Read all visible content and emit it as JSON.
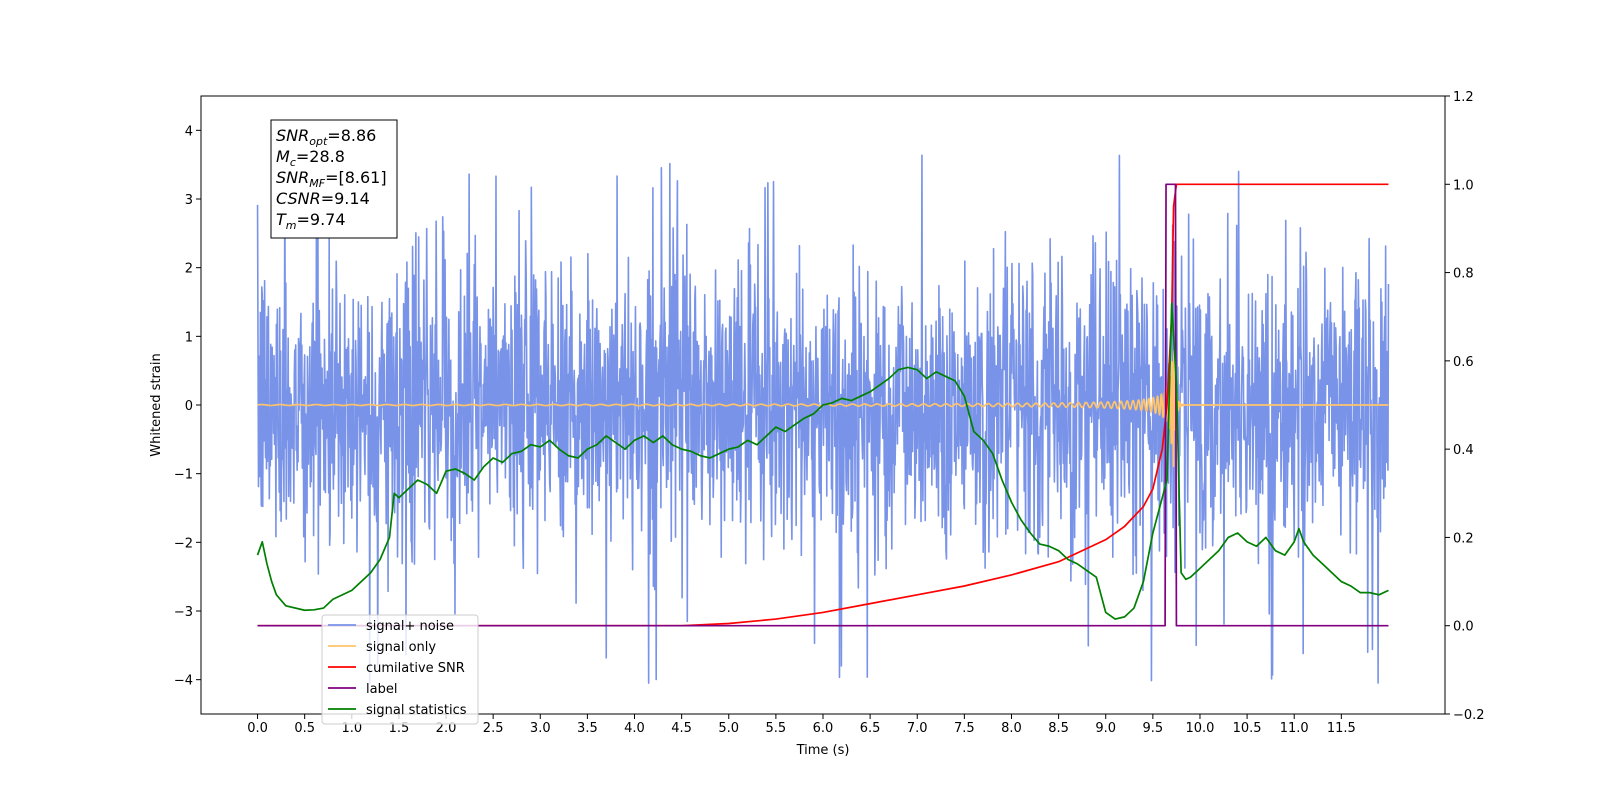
{
  "chart_data": {
    "type": "line",
    "title": "",
    "xlabel": "Time (s)",
    "ylabel": "Whitened strain",
    "xlim": [
      -0.6,
      12.6
    ],
    "ylim_left": [
      -4.5,
      4.5
    ],
    "ylim_right": [
      -0.2,
      1.2
    ],
    "x_ticks": [
      0.0,
      0.5,
      1.0,
      1.5,
      2.0,
      2.5,
      3.0,
      3.5,
      4.0,
      4.5,
      5.0,
      5.5,
      6.0,
      6.5,
      7.0,
      7.5,
      8.0,
      8.5,
      9.0,
      9.5,
      10.0,
      10.5,
      11.0,
      11.5
    ],
    "x_tick_labels": [
      "0.0",
      "0.5",
      "1.0",
      "1.5",
      "2.0",
      "2.5",
      "3.0",
      "3.5",
      "4.0",
      "4.5",
      "5.0",
      "5.5",
      "6.0",
      "6.5",
      "7.0",
      "7.5",
      "8.0",
      "8.5",
      "9.0",
      "9.5",
      "10.0",
      "10.5",
      "11.0",
      "11.5"
    ],
    "y_left_ticks": [
      4,
      3,
      2,
      1,
      0,
      -1,
      -2,
      -3,
      -4
    ],
    "y_left_tick_labels": [
      "4",
      "3",
      "2",
      "1",
      "0",
      "−1",
      "−2",
      "−3",
      "−4"
    ],
    "y_right_ticks": [
      1.2,
      1.0,
      0.8,
      0.6,
      0.4,
      0.2,
      0.0,
      -0.2
    ],
    "y_right_tick_labels": [
      "1.2",
      "1.0",
      "0.8",
      "0.6",
      "0.4",
      "0.2",
      "0.0",
      "−0.2"
    ],
    "grid": false,
    "legend_placement": "lower-left",
    "legend": [
      {
        "label": "signal+ noise",
        "color": "#7893e8"
      },
      {
        "label": "signal only",
        "color": "#ffc46b"
      },
      {
        "label": "cumilative SNR",
        "color": "#ff0000"
      },
      {
        "label": "label",
        "color": "#800080"
      },
      {
        "label": "signal statistics",
        "color": "#008000"
      }
    ],
    "annotation": {
      "lines": [
        {
          "base": "SNR",
          "sub": "opt",
          "rest": "=8.86"
        },
        {
          "base": "M",
          "sub": "c",
          "rest": "=28.8"
        },
        {
          "base": "SNR",
          "sub": "MF",
          "rest": "=[8.61]"
        },
        {
          "base": "CSNR",
          "sub": "",
          "rest": "=9.14"
        },
        {
          "base": "T",
          "sub": "m",
          "rest": "=9.74"
        }
      ]
    },
    "series": [
      {
        "name": "signal+ noise",
        "axis": "left",
        "color": "#7893e8",
        "kind": "noise",
        "x_range": [
          0.0,
          12.0
        ],
        "amplitude_range": [
          -4.05,
          3.7
        ]
      },
      {
        "name": "signal only",
        "axis": "left",
        "color": "#ffc46b",
        "kind": "chirp",
        "x_range": [
          0.0,
          12.0
        ],
        "merger_time": 9.72
      },
      {
        "name": "cumilative SNR",
        "axis": "right",
        "color": "#ff0000",
        "x": [
          0.0,
          4.5,
          5.0,
          5.5,
          6.0,
          6.5,
          7.0,
          7.5,
          8.0,
          8.5,
          9.0,
          9.2,
          9.4,
          9.5,
          9.6,
          9.65,
          9.7,
          9.72,
          9.75,
          10.0,
          12.0
        ],
        "y": [
          0.0,
          0.0,
          0.005,
          0.015,
          0.03,
          0.05,
          0.07,
          0.09,
          0.115,
          0.145,
          0.195,
          0.225,
          0.27,
          0.31,
          0.4,
          0.5,
          0.7,
          0.95,
          1.0,
          1.0,
          1.0
        ]
      },
      {
        "name": "label",
        "axis": "right",
        "color": "#800080",
        "x": [
          0.0,
          9.63,
          9.64,
          9.74,
          9.75,
          12.0
        ],
        "y": [
          0.0,
          0.0,
          1.0,
          1.0,
          0.0,
          0.0
        ]
      },
      {
        "name": "signal statistics",
        "axis": "right",
        "color": "#008000",
        "x": [
          0.0,
          0.05,
          0.1,
          0.15,
          0.2,
          0.3,
          0.5,
          0.6,
          0.7,
          0.8,
          1.0,
          1.1,
          1.2,
          1.3,
          1.4,
          1.45,
          1.5,
          1.6,
          1.7,
          1.8,
          1.9,
          2.0,
          2.1,
          2.2,
          2.3,
          2.4,
          2.5,
          2.6,
          2.7,
          2.8,
          2.9,
          3.0,
          3.1,
          3.2,
          3.3,
          3.4,
          3.5,
          3.6,
          3.7,
          3.8,
          3.9,
          4.0,
          4.1,
          4.2,
          4.3,
          4.4,
          4.5,
          4.6,
          4.7,
          4.8,
          4.9,
          5.0,
          5.1,
          5.2,
          5.3,
          5.4,
          5.5,
          5.6,
          5.7,
          5.8,
          5.9,
          6.0,
          6.1,
          6.2,
          6.3,
          6.4,
          6.5,
          6.6,
          6.7,
          6.8,
          6.9,
          7.0,
          7.1,
          7.2,
          7.3,
          7.4,
          7.5,
          7.6,
          7.7,
          7.8,
          7.9,
          8.0,
          8.1,
          8.2,
          8.3,
          8.4,
          8.5,
          8.6,
          8.7,
          8.8,
          8.9,
          9.0,
          9.1,
          9.2,
          9.3,
          9.4,
          9.5,
          9.6,
          9.65,
          9.7,
          9.75,
          9.8,
          9.85,
          9.9,
          10.0,
          10.1,
          10.2,
          10.3,
          10.4,
          10.5,
          10.6,
          10.7,
          10.8,
          10.9,
          11.0,
          11.05,
          11.1,
          11.2,
          11.3,
          11.4,
          11.5,
          11.6,
          11.7,
          11.8,
          11.9,
          12.0
        ],
        "y": [
          0.16,
          0.19,
          0.14,
          0.1,
          0.07,
          0.045,
          0.035,
          0.036,
          0.04,
          0.06,
          0.08,
          0.1,
          0.12,
          0.15,
          0.2,
          0.3,
          0.29,
          0.31,
          0.33,
          0.32,
          0.3,
          0.35,
          0.355,
          0.345,
          0.33,
          0.36,
          0.38,
          0.37,
          0.39,
          0.395,
          0.41,
          0.405,
          0.42,
          0.4,
          0.385,
          0.38,
          0.4,
          0.41,
          0.43,
          0.415,
          0.4,
          0.42,
          0.43,
          0.415,
          0.43,
          0.41,
          0.4,
          0.395,
          0.385,
          0.38,
          0.39,
          0.4,
          0.405,
          0.42,
          0.41,
          0.43,
          0.45,
          0.44,
          0.455,
          0.47,
          0.48,
          0.5,
          0.505,
          0.515,
          0.51,
          0.52,
          0.53,
          0.545,
          0.56,
          0.58,
          0.585,
          0.58,
          0.56,
          0.575,
          0.565,
          0.555,
          0.52,
          0.44,
          0.42,
          0.39,
          0.33,
          0.28,
          0.24,
          0.21,
          0.185,
          0.18,
          0.17,
          0.15,
          0.14,
          0.125,
          0.11,
          0.03,
          0.015,
          0.02,
          0.04,
          0.1,
          0.21,
          0.29,
          0.33,
          0.73,
          0.55,
          0.12,
          0.105,
          0.11,
          0.13,
          0.15,
          0.17,
          0.2,
          0.21,
          0.19,
          0.18,
          0.2,
          0.17,
          0.16,
          0.19,
          0.22,
          0.19,
          0.16,
          0.14,
          0.12,
          0.1,
          0.09,
          0.075,
          0.075,
          0.07,
          0.08
        ]
      }
    ]
  }
}
